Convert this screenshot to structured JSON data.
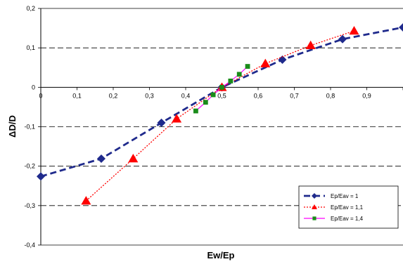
{
  "chart_data": {
    "type": "line",
    "xlabel": "Ew/Ep",
    "ylabel": "ΔD/D",
    "xlim": [
      0,
      1
    ],
    "ylim": [
      -0.4,
      0.2
    ],
    "x_ticks": [
      "0",
      "0,1",
      "0,2",
      "0,3",
      "0,4",
      "0,5",
      "0,6",
      "0,7",
      "0,8",
      "0,9"
    ],
    "y_ticks": [
      "0,2",
      "0,1",
      "0",
      "-0,1",
      "-0,2",
      "-0,3",
      "-0,4"
    ],
    "grid": "horizontal dashed",
    "legend_position": "lower-right",
    "series": [
      {
        "name": "Ep/Eav = 1",
        "color": "#1f2a8c",
        "line_style": "dashed",
        "marker": "diamond",
        "x": [
          0,
          0.167,
          0.333,
          0.5,
          0.667,
          0.833,
          1.0
        ],
        "y": [
          -0.226,
          -0.181,
          -0.09,
          0.0,
          0.07,
          0.122,
          0.152
        ]
      },
      {
        "name": "Ep/Eav = 1,1",
        "color": "#ff0000",
        "line_style": "dotted",
        "marker": "triangle",
        "x": [
          0.125,
          0.255,
          0.375,
          0.5,
          0.62,
          0.745,
          0.865
        ],
        "y": [
          -0.288,
          -0.181,
          -0.08,
          0.0,
          0.06,
          0.106,
          0.143
        ]
      },
      {
        "name": "Ep/Eav = 1,4",
        "color": "#ff00ff",
        "marker_color": "#1a8c1a",
        "line_style": "solid",
        "marker": "square",
        "x": [
          0.428,
          0.455,
          0.476,
          0.5,
          0.524,
          0.548,
          0.571
        ],
        "y": [
          -0.06,
          -0.038,
          -0.019,
          0.0,
          0.016,
          0.033,
          0.053
        ]
      }
    ]
  }
}
